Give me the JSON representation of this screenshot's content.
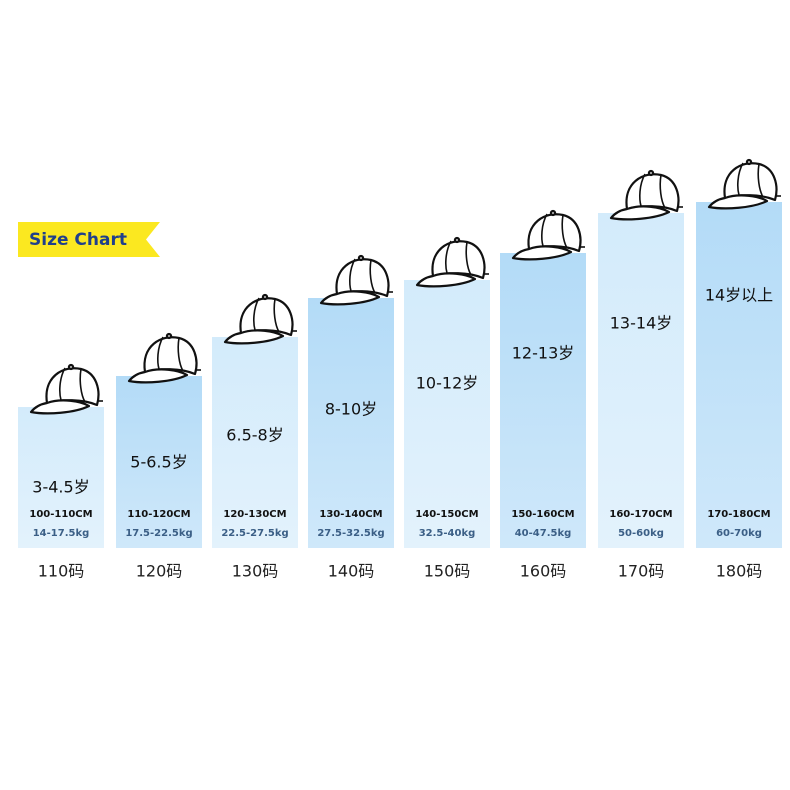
{
  "title": "Size Chart",
  "sizes": [
    {
      "age": "3-4.5岁",
      "height": "100-110CM",
      "weight": "14-17.5kg",
      "size": "110码"
    },
    {
      "age": "5-6.5岁",
      "height": "110-120CM",
      "weight": "17.5-22.5kg",
      "size": "120码"
    },
    {
      "age": "6.5-8岁",
      "height": "120-130CM",
      "weight": "22.5-27.5kg",
      "size": "130码"
    },
    {
      "age": "8-10岁",
      "height": "130-140CM",
      "weight": "27.5-32.5kg",
      "size": "140码"
    },
    {
      "age": "10-12岁",
      "height": "140-150CM",
      "weight": "32.5-40kg",
      "size": "150码"
    },
    {
      "age": "12-13岁",
      "height": "150-160CM",
      "weight": "40-47.5kg",
      "size": "160码"
    },
    {
      "age": "13-14岁",
      "height": "160-170CM",
      "weight": "50-60kg",
      "size": "170码"
    },
    {
      "age": "14岁以上",
      "height": "170-180CM",
      "weight": "60-70kg",
      "size": "180码"
    }
  ]
}
